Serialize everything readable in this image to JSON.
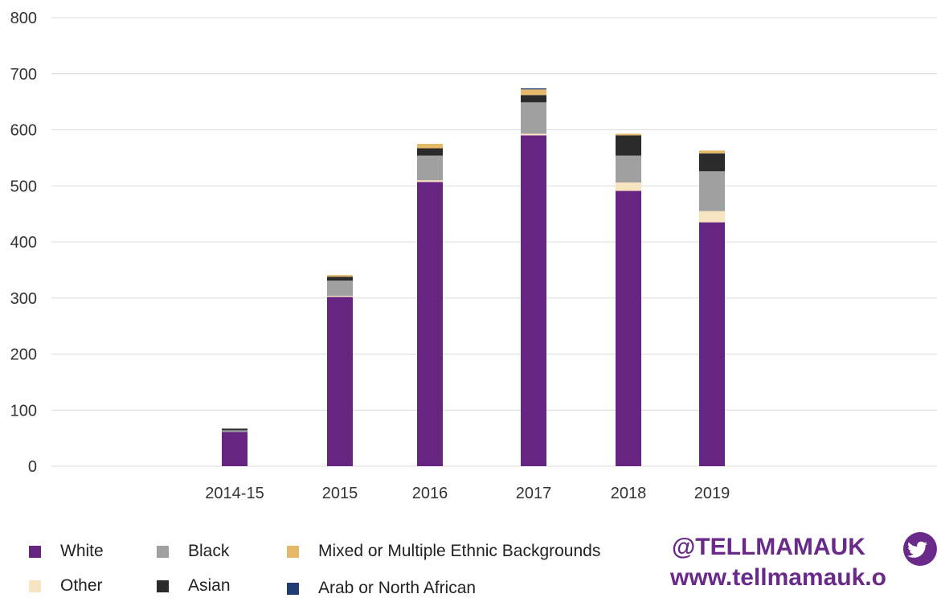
{
  "chart_data": {
    "type": "bar",
    "stacked": true,
    "categories": [
      "2014-15",
      "2015",
      "2016",
      "2017",
      "2018",
      "2019"
    ],
    "ylim": [
      0,
      800
    ],
    "yticks": [
      0,
      100,
      200,
      300,
      400,
      500,
      600,
      700,
      800
    ],
    "grid": true,
    "legend_position": "bottom",
    "series": [
      {
        "name": "White",
        "color": "#652581",
        "values": [
          61,
          302,
          507,
          590,
          491,
          435
        ]
      },
      {
        "name": "Other",
        "color": "#f7e4c0",
        "values": [
          0,
          2,
          3,
          3,
          15,
          20
        ]
      },
      {
        "name": "Black",
        "color": "#a0a0a0",
        "values": [
          3,
          27,
          44,
          56,
          48,
          71
        ]
      },
      {
        "name": "Asian",
        "color": "#2b2b2b",
        "values": [
          3,
          7,
          13,
          13,
          36,
          32
        ]
      },
      {
        "name": "Mixed or Multiple Ethnic Backgrounds",
        "color": "#e5b86a",
        "values": [
          0,
          3,
          8,
          10,
          3,
          5
        ]
      },
      {
        "name": "Arab or North African",
        "color": "#1f3d73",
        "values": [
          0,
          0,
          0,
          2,
          0,
          0
        ]
      }
    ]
  },
  "legend": [
    {
      "label": "White",
      "color": "#652581"
    },
    {
      "label": "Black",
      "color": "#a0a0a0"
    },
    {
      "label": "Mixed or Multiple Ethnic Backgrounds",
      "color": "#e5b86a"
    },
    {
      "label": "Other",
      "color": "#f7e4c0"
    },
    {
      "label": "Asian",
      "color": "#2b2b2b"
    },
    {
      "label": "Arab or North African",
      "color": "#1f3d73"
    }
  ],
  "branding": {
    "handle": "@TELLMAMAUK",
    "website": "www.tellmamauk.o",
    "icon": "twitter-bird-icon",
    "color": "#6a2a8a"
  }
}
